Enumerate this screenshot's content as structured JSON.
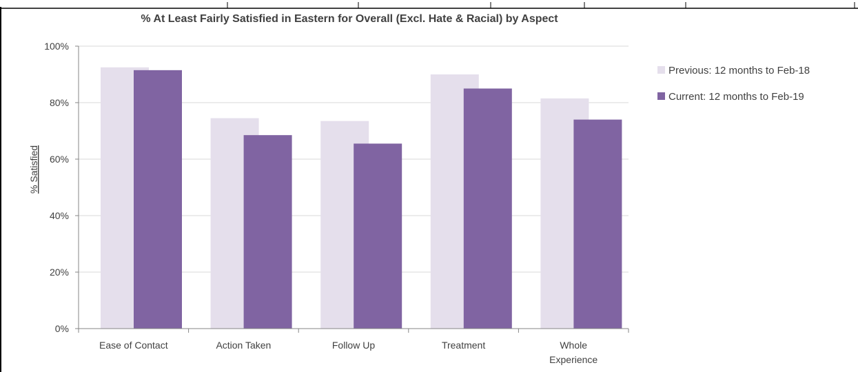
{
  "chart_data": {
    "type": "bar",
    "title": "% At Least Fairly Satisfied in Eastern for Overall (Excl. Hate & Racial) by Aspect",
    "xlabel": "",
    "ylabel": "% Satisfied",
    "ylim": [
      0,
      100
    ],
    "yticks": [
      "0%",
      "20%",
      "40%",
      "60%",
      "80%",
      "100%"
    ],
    "categories": [
      [
        "Ease of Contact"
      ],
      [
        "Action Taken"
      ],
      [
        "Follow Up"
      ],
      [
        "Treatment"
      ],
      [
        "Whole",
        "Experience"
      ]
    ],
    "series": [
      {
        "name": "Previous: 12 months to Feb-18",
        "values": [
          92.5,
          74.5,
          73.5,
          90.0,
          81.5
        ],
        "color": "#e5dfec"
      },
      {
        "name": "Current: 12 months to Feb-19",
        "values": [
          91.5,
          68.5,
          65.5,
          85.0,
          74.0
        ],
        "color": "#8064a2"
      }
    ],
    "grid": true,
    "legend": "right"
  }
}
